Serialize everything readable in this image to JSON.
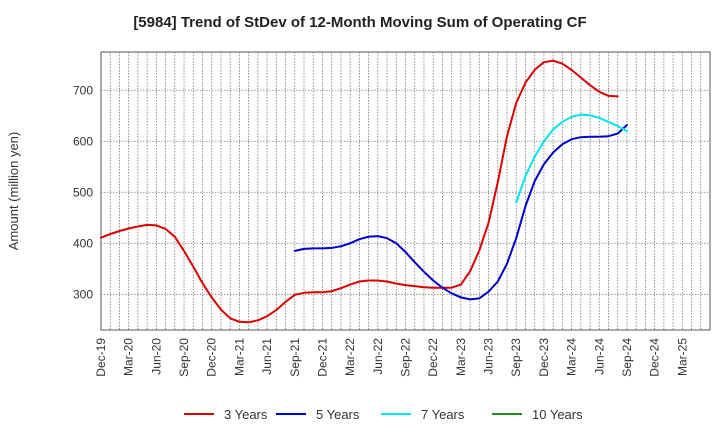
{
  "chart_data": {
    "type": "line",
    "title": "[5984]  Trend of StDev of 12-Month Moving Sum of Operating CF",
    "xlabel": "",
    "ylabel": "Amount (million yen)",
    "ylim": [
      230,
      775
    ],
    "yticks": [
      300,
      400,
      500,
      600,
      700
    ],
    "x_tick_labels": [
      "Dec-19",
      "Mar-20",
      "Jun-20",
      "Sep-20",
      "Dec-20",
      "Mar-21",
      "Jun-21",
      "Sep-21",
      "Dec-21",
      "Mar-22",
      "Jun-22",
      "Sep-22",
      "Dec-22",
      "Mar-23",
      "Jun-23",
      "Sep-23",
      "Dec-23",
      "Mar-24",
      "Jun-24",
      "Sep-24",
      "Dec-24",
      "Mar-25"
    ],
    "x_range_months": [
      0,
      66
    ],
    "grid": true,
    "legend_position": "bottom",
    "series": [
      {
        "name": "3 Years",
        "color": "#dd0000",
        "x": [
          0,
          1,
          2,
          3,
          4,
          5,
          6,
          7,
          8,
          9,
          10,
          11,
          12,
          13,
          14,
          15,
          16,
          17,
          18,
          19,
          20,
          21,
          22,
          23,
          24,
          25,
          26,
          27,
          28,
          29,
          30,
          31,
          32,
          33,
          34,
          35,
          36,
          37,
          38,
          39,
          40,
          41,
          42,
          43,
          44,
          45,
          46,
          47,
          48,
          49,
          50,
          51,
          52,
          53,
          54,
          55,
          56,
          57,
          58,
          59,
          60,
          61
        ],
        "values": [
          411,
          418,
          424,
          429,
          433,
          436,
          435,
          428,
          413,
          385,
          354,
          322,
          294,
          270,
          253,
          246,
          245,
          249,
          257,
          269,
          285,
          299,
          303,
          304,
          304,
          306,
          312,
          319,
          325,
          327,
          327,
          325,
          321,
          318,
          316,
          314,
          313,
          313,
          313,
          319,
          345,
          386,
          440,
          520,
          610,
          675,
          715,
          740,
          755,
          758,
          752,
          740,
          725,
          710,
          697,
          689,
          688,
          null,
          null,
          null,
          null,
          null
        ]
      },
      {
        "name": "5 Years",
        "color": "#0000cc",
        "x": [
          21,
          22,
          23,
          24,
          25,
          26,
          27,
          28,
          29,
          30,
          31,
          32,
          33,
          34,
          35,
          36,
          37,
          38,
          39,
          40,
          41,
          42,
          43,
          44,
          45,
          46,
          47,
          48,
          49,
          50,
          51,
          52,
          53,
          54,
          55,
          56,
          57
        ],
        "values": [
          385,
          389,
          390,
          390,
          391,
          394,
          400,
          408,
          413,
          414,
          410,
          400,
          383,
          363,
          344,
          327,
          313,
          302,
          294,
          290,
          292,
          305,
          325,
          360,
          410,
          473,
          522,
          555,
          578,
          594,
          604,
          608,
          609,
          609,
          610,
          615,
          632
        ]
      },
      {
        "name": "7 Years",
        "color": "#00e5ee",
        "x": [
          45,
          46,
          47,
          48,
          49,
          50,
          51,
          52,
          53,
          54,
          55,
          56,
          57
        ],
        "values": [
          480,
          532,
          570,
          600,
          623,
          638,
          648,
          652,
          651,
          646,
          638,
          630,
          620
        ]
      },
      {
        "name": "10 Years",
        "color": "#228b22",
        "x": [],
        "values": []
      }
    ]
  }
}
